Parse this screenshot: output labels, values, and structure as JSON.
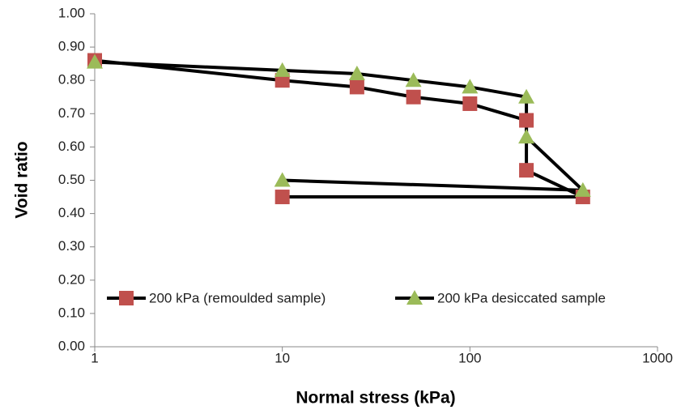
{
  "chart_data": {
    "type": "line",
    "xlabel": "Normal stress (kPa)",
    "ylabel": "Void ratio",
    "xscale": "log",
    "xlim": [
      1,
      1000
    ],
    "xticks": [
      1,
      10,
      100,
      1000
    ],
    "ylim": [
      0,
      1
    ],
    "yticks": [
      {
        "value": 0,
        "label": "0.00"
      },
      {
        "value": 0.1,
        "label": "0.10"
      },
      {
        "value": 0.2,
        "label": "0.20"
      },
      {
        "value": 0.3,
        "label": "0.30"
      },
      {
        "value": 0.4,
        "label": "0.40"
      },
      {
        "value": 0.5,
        "label": "0.50"
      },
      {
        "value": 0.6,
        "label": "0.60"
      },
      {
        "value": 0.7,
        "label": "0.70"
      },
      {
        "value": 0.8,
        "label": "0.80"
      },
      {
        "value": 0.9,
        "label": "0.90"
      },
      {
        "value": 1,
        "label": "1.00"
      }
    ],
    "grid": false,
    "legend": "bottom",
    "line_color": "#000000",
    "series": [
      {
        "name": "200 kPa (remoulded sample)",
        "marker": "square",
        "color": "#c0504d",
        "x": [
          1,
          10,
          25,
          50,
          100,
          200,
          200,
          400,
          10
        ],
        "values": [
          0.86,
          0.8,
          0.78,
          0.75,
          0.73,
          0.68,
          0.53,
          0.45,
          0.45
        ]
      },
      {
        "name": "200 kPa desiccated sample",
        "marker": "triangle",
        "color": "#9bbb59",
        "x": [
          1,
          10,
          25,
          50,
          100,
          200,
          200,
          400,
          10
        ],
        "values": [
          0.855,
          0.83,
          0.82,
          0.8,
          0.78,
          0.75,
          0.63,
          0.47,
          0.5
        ]
      }
    ]
  }
}
